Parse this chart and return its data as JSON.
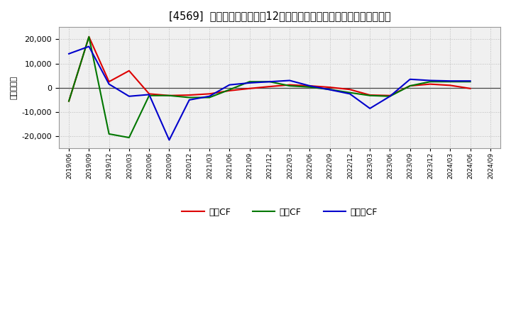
{
  "title": "[4569]  キャッシュフローの12か月移動合計の対前年同期増減額の推移",
  "ylabel": "（百万円）",
  "background_color": "#ffffff",
  "plot_bg_color": "#f0f0f0",
  "grid_color": "#bbbbbb",
  "x_labels": [
    "2019/06",
    "2019/09",
    "2019/12",
    "2020/03",
    "2020/06",
    "2020/09",
    "2020/12",
    "2021/03",
    "2021/06",
    "2021/09",
    "2021/12",
    "2022/03",
    "2022/06",
    "2022/09",
    "2022/12",
    "2023/03",
    "2023/06",
    "2023/09",
    "2023/12",
    "2024/03",
    "2024/06",
    "2024/09"
  ],
  "operating_cf": [
    -5500,
    21000,
    2500,
    7000,
    -2500,
    -3200,
    -3000,
    -2500,
    -1200,
    -300,
    500,
    1200,
    800,
    200,
    -700,
    -3000,
    -3200,
    800,
    1500,
    1000,
    -300,
    null
  ],
  "investing_cf": [
    -5500,
    21000,
    -19000,
    -20500,
    -3200,
    -3200,
    -4000,
    -4000,
    -800,
    2500,
    2500,
    800,
    300,
    -700,
    -2000,
    -3200,
    -3500,
    800,
    2500,
    2500,
    2500,
    null
  ],
  "free_cf": [
    14000,
    17000,
    1500,
    -3500,
    -2800,
    -21500,
    -5000,
    -3500,
    1200,
    2000,
    2500,
    3000,
    800,
    -800,
    -2500,
    -8500,
    -3500,
    3500,
    3000,
    2800,
    2800,
    null
  ],
  "operating_color": "#dd0000",
  "investing_color": "#007700",
  "free_color": "#0000cc",
  "ylim": [
    -25000,
    25000
  ],
  "yticks": [
    -20000,
    -10000,
    0,
    10000,
    20000
  ],
  "legend_labels": [
    "営業CF",
    "投資CF",
    "フリーCF"
  ]
}
